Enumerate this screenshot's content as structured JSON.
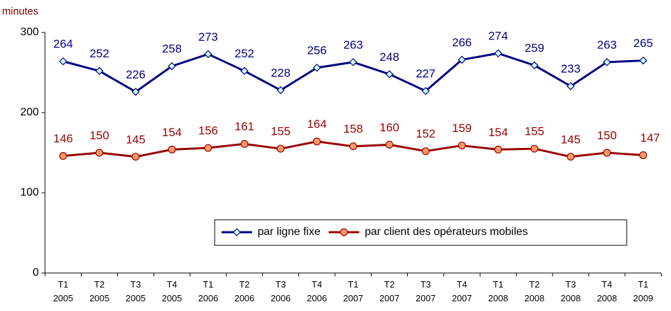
{
  "chart_data": {
    "type": "line",
    "y_label": "minutes",
    "categories": [
      "T1 2005",
      "T2 2005",
      "T3 2005",
      "T4 2005",
      "T1 2006",
      "T2 2006",
      "T3 2006",
      "T4 2006",
      "T1 2007",
      "T2 2007",
      "T3 2007",
      "T4 2007",
      "T1 2008",
      "T2 2008",
      "T3 2008",
      "T4 2008",
      "T1 2009"
    ],
    "series": [
      {
        "name": "par ligne fixe",
        "color": "#000080",
        "marker": "diamond",
        "marker_fill": "#ccffff",
        "values": [
          264,
          252,
          226,
          258,
          273,
          252,
          228,
          256,
          263,
          248,
          227,
          266,
          274,
          259,
          233,
          263,
          265
        ]
      },
      {
        "name": "par client des opérateurs mobiles",
        "color": "#990000",
        "marker": "circle",
        "marker_fill": "#ff9966",
        "values": [
          146,
          150,
          145,
          154,
          156,
          161,
          155,
          164,
          158,
          160,
          152,
          159,
          154,
          155,
          145,
          150,
          147
        ]
      }
    ],
    "ylim": [
      0,
      300
    ],
    "yticks": [
      0,
      100,
      200,
      300
    ],
    "grid": false
  }
}
